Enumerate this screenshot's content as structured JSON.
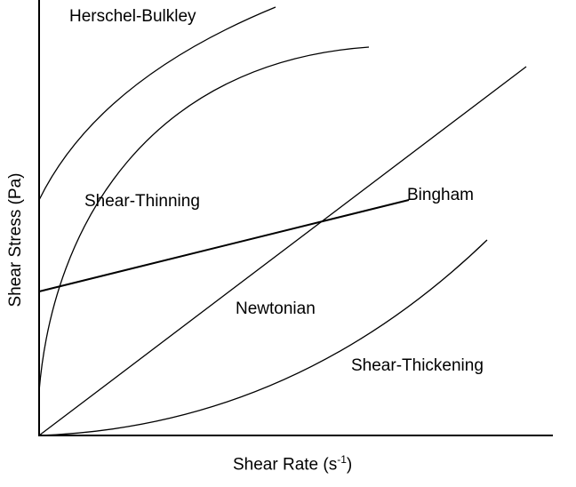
{
  "axes": {
    "y_label": "Shear Stress (Pa)",
    "x_label_main": "Shear Rate (s",
    "x_label_sup": "-1",
    "x_label_end": ")"
  },
  "curves": {
    "herschel_bulkley": "Herschel-Bulkley",
    "shear_thinning": "Shear-Thinning",
    "bingham": "Bingham",
    "newtonian": "Newtonian",
    "shear_thickening": "Shear-Thickening"
  },
  "colors": {
    "line": "#000000",
    "background": "#ffffff"
  }
}
